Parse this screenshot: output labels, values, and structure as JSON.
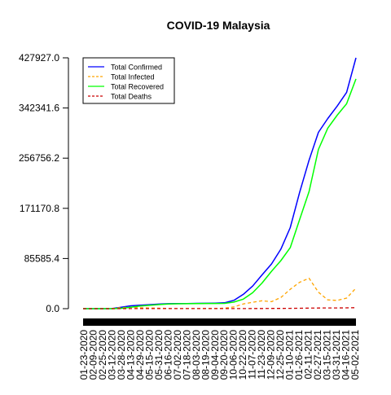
{
  "chart_data": {
    "type": "line",
    "title": "COVID-19 Malaysia",
    "xlabel": "",
    "ylabel": "",
    "ylim": [
      0,
      427927.0
    ],
    "y_ticks": [
      "0.0",
      "85585.4",
      "171170.8",
      "256756.2",
      "342341.6",
      "427927.0"
    ],
    "y_tick_values": [
      0,
      85585.4,
      171170.8,
      256756.2,
      342341.6,
      427927.0
    ],
    "x_tick_labels": [
      "01-23-2020",
      "02-09-2020",
      "02-25-2020",
      "03-12-2020",
      "03-28-2020",
      "04-13-2020",
      "04-29-2020",
      "05-15-2020",
      "05-31-2020",
      "06-16-2020",
      "07-02-2020",
      "07-18-2020",
      "08-03-2020",
      "08-19-2020",
      "09-04-2020",
      "09-20-2020",
      "10-06-2020",
      "10-22-2020",
      "11-07-2020",
      "11-23-2020",
      "12-09-2020",
      "12-25-2020",
      "01-10-2021",
      "01-26-2021",
      "02-11-2021",
      "02-27-2021",
      "03-15-2021",
      "03-31-2021",
      "04-16-2021",
      "05-02-2021"
    ],
    "x_range": [
      "01-23-2020",
      "05-02-2021"
    ],
    "legend_position": "top-left",
    "grid": false,
    "series": [
      {
        "name": "Total Confirmed",
        "color": "#0000ff",
        "dash": "solid",
        "points": [
          [
            "01-23-2020",
            0
          ],
          [
            "02-25-2020",
            22
          ],
          [
            "03-12-2020",
            129
          ],
          [
            "03-28-2020",
            2320
          ],
          [
            "04-13-2020",
            4817
          ],
          [
            "04-29-2020",
            5945
          ],
          [
            "05-15-2020",
            6819
          ],
          [
            "05-31-2020",
            7819
          ],
          [
            "06-16-2020",
            8515
          ],
          [
            "07-02-2020",
            8640
          ],
          [
            "07-18-2020",
            8779
          ],
          [
            "08-03-2020",
            8999
          ],
          [
            "08-19-2020",
            9235
          ],
          [
            "09-04-2020",
            9385
          ],
          [
            "09-20-2020",
            10052
          ],
          [
            "10-06-2020",
            14368
          ],
          [
            "10-22-2020",
            24514
          ],
          [
            "11-07-2020",
            38576
          ],
          [
            "11-23-2020",
            57627
          ],
          [
            "12-09-2020",
            76265
          ],
          [
            "12-25-2020",
            101565
          ],
          [
            "01-10-2021",
            138224
          ],
          [
            "01-26-2021",
            198208
          ],
          [
            "02-11-2021",
            253267
          ],
          [
            "02-27-2021",
            300752
          ],
          [
            "03-15-2021",
            324412
          ],
          [
            "03-31-2021",
            345500
          ],
          [
            "04-16-2021",
            369000
          ],
          [
            "05-02-2021",
            427927
          ]
        ]
      },
      {
        "name": "Total Infected",
        "color": "#ffa500",
        "dash": "dashed",
        "points": [
          [
            "01-23-2020",
            0
          ],
          [
            "02-25-2020",
            10
          ],
          [
            "03-12-2020",
            100
          ],
          [
            "03-28-2020",
            1800
          ],
          [
            "04-13-2020",
            2500
          ],
          [
            "04-29-2020",
            1500
          ],
          [
            "05-15-2020",
            1100
          ],
          [
            "05-31-2020",
            800
          ],
          [
            "06-16-2020",
            300
          ],
          [
            "07-02-2020",
            150
          ],
          [
            "07-18-2020",
            150
          ],
          [
            "08-03-2020",
            200
          ],
          [
            "08-19-2020",
            250
          ],
          [
            "09-04-2020",
            300
          ],
          [
            "09-20-2020",
            800
          ],
          [
            "10-06-2020",
            3000
          ],
          [
            "10-22-2020",
            8000
          ],
          [
            "11-07-2020",
            11000
          ],
          [
            "11-23-2020",
            13500
          ],
          [
            "12-09-2020",
            12000
          ],
          [
            "12-25-2020",
            19000
          ],
          [
            "01-10-2021",
            33000
          ],
          [
            "01-26-2021",
            45000
          ],
          [
            "02-11-2021",
            52000
          ],
          [
            "02-27-2021",
            28000
          ],
          [
            "03-15-2021",
            15000
          ],
          [
            "03-31-2021",
            14000
          ],
          [
            "04-16-2021",
            18000
          ],
          [
            "05-02-2021",
            35000
          ]
        ]
      },
      {
        "name": "Total Recovered",
        "color": "#00ff00",
        "dash": "solid",
        "points": [
          [
            "01-23-2020",
            0
          ],
          [
            "02-25-2020",
            12
          ],
          [
            "03-12-2020",
            29
          ],
          [
            "03-28-2020",
            500
          ],
          [
            "04-13-2020",
            2300
          ],
          [
            "04-29-2020",
            4400
          ],
          [
            "05-15-2020",
            5700
          ],
          [
            "05-31-2020",
            7000
          ],
          [
            "06-16-2020",
            8100
          ],
          [
            "07-02-2020",
            8400
          ],
          [
            "07-18-2020",
            8500
          ],
          [
            "08-03-2020",
            8700
          ],
          [
            "08-19-2020",
            8900
          ],
          [
            "09-04-2020",
            8950
          ],
          [
            "09-20-2020",
            9100
          ],
          [
            "10-06-2020",
            11200
          ],
          [
            "10-22-2020",
            16200
          ],
          [
            "11-07-2020",
            27200
          ],
          [
            "11-23-2020",
            43700
          ],
          [
            "12-09-2020",
            63800
          ],
          [
            "12-25-2020",
            82000
          ],
          [
            "01-10-2021",
            104000
          ],
          [
            "01-26-2021",
            152000
          ],
          [
            "02-11-2021",
            199700
          ],
          [
            "02-27-2021",
            271600
          ],
          [
            "03-15-2021",
            308000
          ],
          [
            "03-31-2021",
            330000
          ],
          [
            "04-16-2021",
            349600
          ],
          [
            "05-02-2021",
            392000
          ]
        ]
      },
      {
        "name": "Total Deaths",
        "color": "#cc0000",
        "dash": "dashed",
        "points": [
          [
            "01-23-2020",
            0
          ],
          [
            "03-12-2020",
            0
          ],
          [
            "03-28-2020",
            27
          ],
          [
            "04-13-2020",
            82
          ],
          [
            "04-29-2020",
            100
          ],
          [
            "05-15-2020",
            112
          ],
          [
            "05-31-2020",
            115
          ],
          [
            "06-16-2020",
            121
          ],
          [
            "07-02-2020",
            121
          ],
          [
            "07-18-2020",
            123
          ],
          [
            "08-03-2020",
            125
          ],
          [
            "08-19-2020",
            125
          ],
          [
            "09-04-2020",
            128
          ],
          [
            "09-20-2020",
            130
          ],
          [
            "10-06-2020",
            146
          ],
          [
            "10-22-2020",
            190
          ],
          [
            "11-07-2020",
            277
          ],
          [
            "11-23-2020",
            335
          ],
          [
            "12-09-2020",
            386
          ],
          [
            "12-25-2020",
            463
          ],
          [
            "01-10-2021",
            555
          ],
          [
            "01-26-2021",
            730
          ],
          [
            "02-11-2021",
            942
          ],
          [
            "02-27-2021",
            1115
          ],
          [
            "03-15-2021",
            1220
          ],
          [
            "03-31-2021",
            1265
          ],
          [
            "04-16-2021",
            1380
          ],
          [
            "05-02-2021",
            1620
          ]
        ]
      }
    ]
  }
}
